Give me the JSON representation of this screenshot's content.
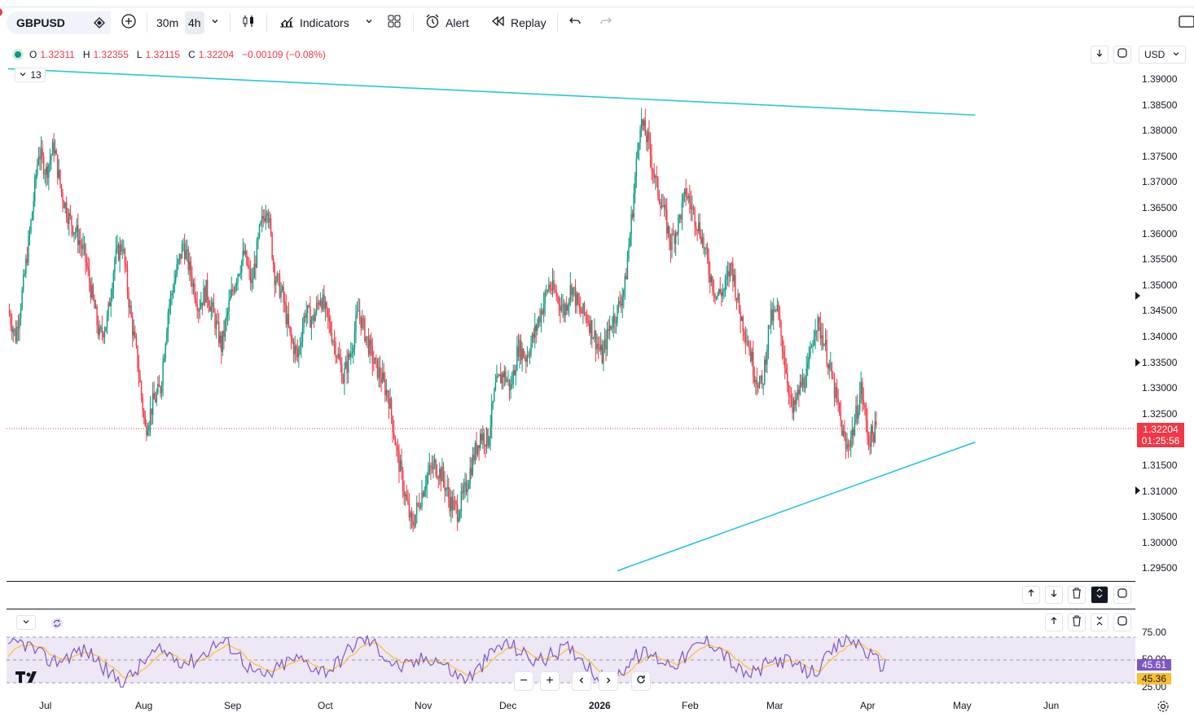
{
  "toolbar": {
    "symbol": "GBPUSD",
    "interval_1": "30m",
    "interval_2": "4h",
    "indicators_label": "Indicators",
    "alert_label": "Alert",
    "replay_label": "Replay"
  },
  "legend": {
    "o_label": "O",
    "o_value": "1.32311",
    "h_label": "H",
    "h_value": "1.32355",
    "l_label": "L",
    "l_value": "1.32115",
    "c_label": "C",
    "c_value": "1.32204",
    "change": "−0.00109 (−0.08%)",
    "collapse_count": "13"
  },
  "currency": "USD",
  "price_axis": [
    "1.39000",
    "1.38500",
    "1.38000",
    "1.37500",
    "1.37000",
    "1.36500",
    "1.36000",
    "1.35500",
    "1.35000",
    "1.34500",
    "1.34000",
    "1.33500",
    "1.33000",
    "1.32500",
    "1.32000",
    "1.31500",
    "1.31000",
    "1.30500",
    "1.30000",
    "1.29500"
  ],
  "last_price": "1.32204",
  "countdown": "01:25:56",
  "rsi": {
    "axis": [
      "75.00",
      "50.00",
      "25.00"
    ],
    "value": "45.61",
    "ma_value": "45.36"
  },
  "time_axis": [
    "Jul",
    "Aug",
    "Sep",
    "Oct",
    "Nov",
    "Dec",
    "2026",
    "Feb",
    "Mar",
    "Apr",
    "May",
    "Jun"
  ],
  "colors": {
    "up": "#089981",
    "down": "#f23645",
    "trendline": "#26c6da",
    "rsi": "#7e57c2",
    "rsi_ma": "#fbc02d",
    "rsi_band": "#ede7f6"
  },
  "chart_data": {
    "type": "candlestick",
    "series_path_points": [
      [
        0,
        1.345
      ],
      [
        1,
        1.34
      ],
      [
        2,
        1.35
      ],
      [
        3,
        1.362
      ],
      [
        4,
        1.376
      ],
      [
        5,
        1.372
      ],
      [
        6,
        1.377
      ],
      [
        7,
        1.368
      ],
      [
        8,
        1.363
      ],
      [
        9,
        1.36
      ],
      [
        10,
        1.356
      ],
      [
        11,
        1.348
      ],
      [
        12,
        1.34
      ],
      [
        13,
        1.343
      ],
      [
        14,
        1.355
      ],
      [
        15,
        1.358
      ],
      [
        16,
        1.345
      ],
      [
        17,
        1.335
      ],
      [
        18,
        1.322
      ],
      [
        19,
        1.327
      ],
      [
        20,
        1.33
      ],
      [
        21,
        1.345
      ],
      [
        22,
        1.352
      ],
      [
        23,
        1.358
      ],
      [
        24,
        1.352
      ],
      [
        25,
        1.346
      ],
      [
        26,
        1.349
      ],
      [
        27,
        1.344
      ],
      [
        28,
        1.338
      ],
      [
        29,
        1.346
      ],
      [
        30,
        1.352
      ],
      [
        31,
        1.356
      ],
      [
        32,
        1.35
      ],
      [
        33,
        1.36
      ],
      [
        34,
        1.366
      ],
      [
        35,
        1.352
      ],
      [
        36,
        1.348
      ],
      [
        37,
        1.34
      ],
      [
        38,
        1.336
      ],
      [
        39,
        1.345
      ],
      [
        40,
        1.343
      ],
      [
        41,
        1.348
      ],
      [
        42,
        1.343
      ],
      [
        43,
        1.338
      ],
      [
        44,
        1.332
      ],
      [
        45,
        1.337
      ],
      [
        46,
        1.345
      ],
      [
        47,
        1.34
      ],
      [
        48,
        1.335
      ],
      [
        49,
        1.332
      ],
      [
        50,
        1.328
      ],
      [
        51,
        1.318
      ],
      [
        52,
        1.31
      ],
      [
        53,
        1.303
      ],
      [
        54,
        1.308
      ],
      [
        55,
        1.313
      ],
      [
        56,
        1.315
      ],
      [
        57,
        1.313
      ],
      [
        58,
        1.308
      ],
      [
        59,
        1.306
      ],
      [
        60,
        1.31
      ],
      [
        61,
        1.316
      ],
      [
        62,
        1.321
      ],
      [
        63,
        1.32
      ],
      [
        64,
        1.33
      ],
      [
        65,
        1.333
      ],
      [
        66,
        1.33
      ],
      [
        67,
        1.338
      ],
      [
        68,
        1.336
      ],
      [
        69,
        1.34
      ],
      [
        70,
        1.345
      ],
      [
        71,
        1.35
      ],
      [
        72,
        1.348
      ],
      [
        73,
        1.345
      ],
      [
        74,
        1.35
      ],
      [
        75,
        1.345
      ],
      [
        76,
        1.344
      ],
      [
        77,
        1.34
      ],
      [
        78,
        1.336
      ],
      [
        79,
        1.342
      ],
      [
        80,
        1.345
      ],
      [
        81,
        1.35
      ],
      [
        82,
        1.365
      ],
      [
        83,
        1.382
      ],
      [
        84,
        1.378
      ],
      [
        85,
        1.37
      ],
      [
        86,
        1.365
      ],
      [
        87,
        1.358
      ],
      [
        88,
        1.362
      ],
      [
        89,
        1.368
      ],
      [
        90,
        1.364
      ],
      [
        91,
        1.36
      ],
      [
        92,
        1.353
      ],
      [
        93,
        1.348
      ],
      [
        94,
        1.349
      ],
      [
        95,
        1.354
      ],
      [
        96,
        1.345
      ],
      [
        97,
        1.34
      ],
      [
        98,
        1.333
      ],
      [
        99,
        1.33
      ],
      [
        100,
        1.343
      ],
      [
        101,
        1.345
      ],
      [
        102,
        1.335
      ],
      [
        103,
        1.325
      ],
      [
        104,
        1.33
      ],
      [
        105,
        1.333
      ],
      [
        106,
        1.343
      ],
      [
        107,
        1.34
      ],
      [
        108,
        1.333
      ],
      [
        109,
        1.326
      ],
      [
        110,
        1.318
      ],
      [
        111,
        1.322
      ],
      [
        112,
        1.33
      ],
      [
        113,
        1.32
      ],
      [
        114,
        1.322
      ]
    ],
    "trendlines": [
      {
        "from": [
          0,
          1.392
        ],
        "to": [
          127,
          1.383
        ]
      },
      {
        "from": [
          80,
          1.2945
        ],
        "to": [
          127,
          1.3195
        ]
      }
    ]
  }
}
